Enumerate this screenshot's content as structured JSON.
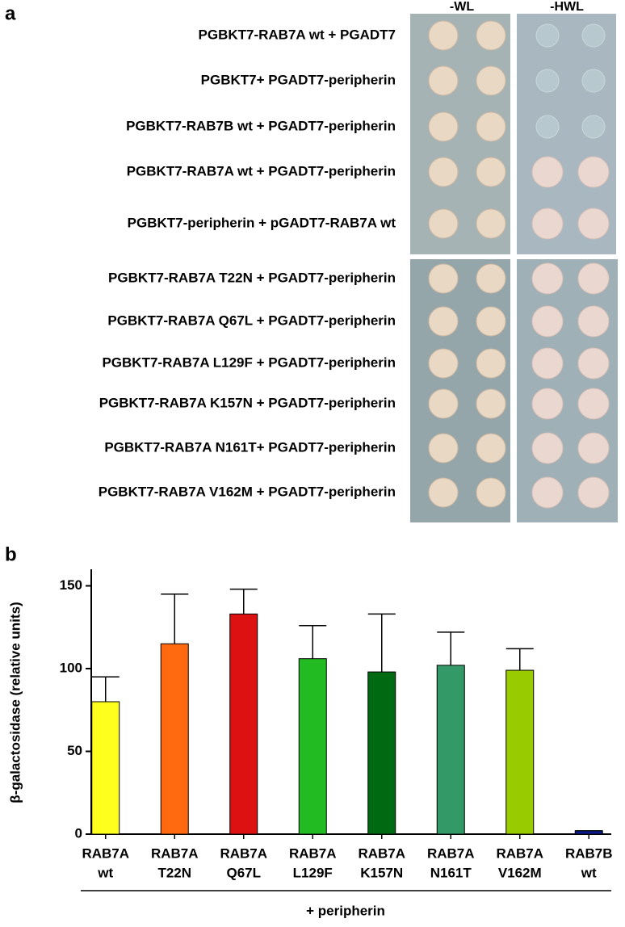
{
  "panel_a": {
    "letter": "a",
    "columns": [
      "-WL",
      "-HWL"
    ],
    "rows": [
      "PGBKT7-RAB7A wt + PGADT7",
      "PGBKT7+ PGADT7-peripherin",
      "PGBKT7-RAB7B wt + PGADT7-peripherin",
      "PGBKT7-RAB7A wt + PGADT7-peripherin",
      "PGBKT7-peripherin + pGADT7-RAB7A wt",
      "PGBKT7-RAB7A T22N + PGADT7-peripherin",
      "PGBKT7-RAB7A Q67L + PGADT7-peripherin",
      "PGBKT7-RAB7A L129F + PGADT7-peripherin",
      "PGBKT7-RAB7A K157N + PGADT7-peripherin",
      "PGBKT7-RAB7A N161T+ PGADT7-peripherin",
      "PGBKT7-RAB7A V162M + PGADT7-peripherin"
    ]
  },
  "panel_b": {
    "letter": "b"
  },
  "chart_data": {
    "type": "bar",
    "ylabel": "β-galactosidase (relative units)",
    "group_label": "+ peripherin",
    "categories": [
      [
        "RAB7A",
        "wt"
      ],
      [
        "RAB7A",
        "T22N"
      ],
      [
        "RAB7A",
        "Q67L"
      ],
      [
        "RAB7A",
        "L129F"
      ],
      [
        "RAB7A",
        "K157N"
      ],
      [
        "RAB7A",
        "N161T"
      ],
      [
        "RAB7A",
        "V162M"
      ],
      [
        "RAB7B",
        "wt"
      ]
    ],
    "values": [
      80,
      115,
      133,
      106,
      98,
      102,
      99,
      2
    ],
    "errors": [
      15,
      30,
      15,
      20,
      35,
      20,
      13,
      0
    ],
    "colors": [
      "#ffff1e",
      "#ff6a10",
      "#dd1111",
      "#22bb22",
      "#006a12",
      "#339966",
      "#99cc00",
      "#0a1a8c"
    ],
    "ylim": [
      0,
      160
    ],
    "yticks": [
      0,
      50,
      100,
      150
    ]
  }
}
